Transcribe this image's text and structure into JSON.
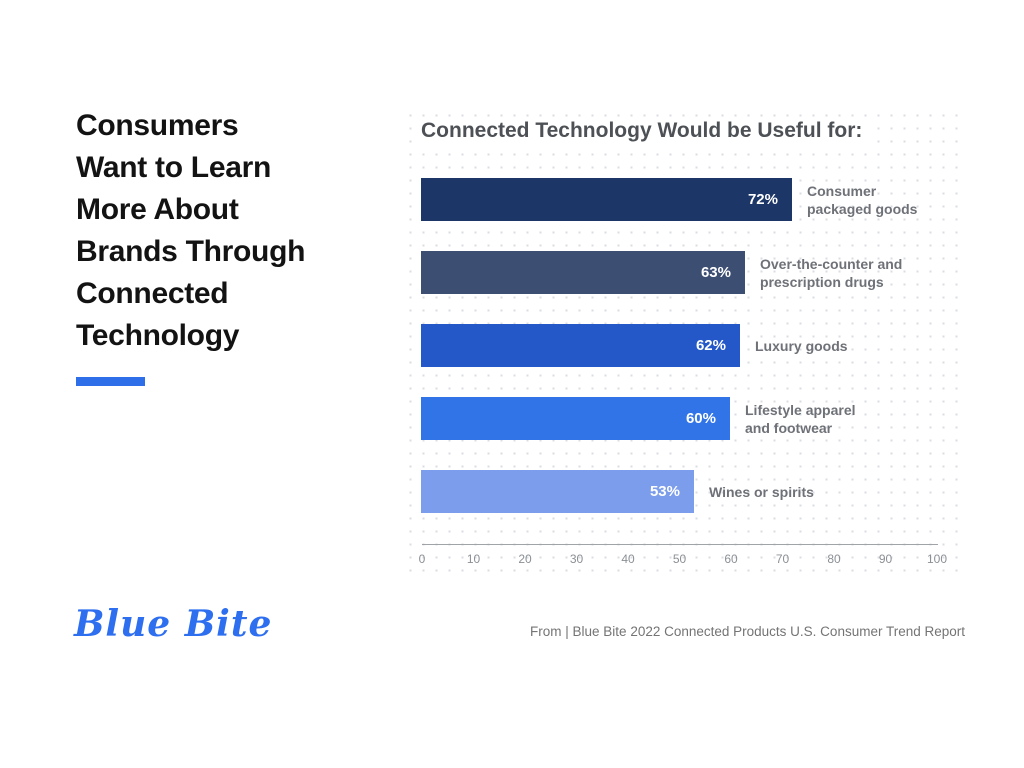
{
  "slide": {
    "headline": "Consumers Want to Learn More About Brands Through Connected Technology",
    "headline_lines": [
      "Consumers",
      "Want to Learn",
      "More About",
      "Brands Through",
      "Connected",
      "Technology"
    ],
    "accent_color": "#2e6ee9"
  },
  "chart_data": {
    "type": "bar",
    "orientation": "horizontal",
    "title": "Connected Technology Would be Useful for:",
    "categories": [
      "Consumer packaged goods",
      "Over-the-counter and prescription drugs",
      "Luxury goods",
      "Lifestyle apparel and footwear",
      "Wines or spirits"
    ],
    "values": [
      72,
      63,
      62,
      60,
      53
    ],
    "value_labels": [
      "72%",
      "63%",
      "62%",
      "60%",
      "53%"
    ],
    "label_lines": [
      [
        "Consumer",
        "packaged goods"
      ],
      [
        "Over-the-counter and",
        "prescription drugs"
      ],
      [
        "Luxury goods"
      ],
      [
        "Lifestyle apparel",
        "and footwear"
      ],
      [
        "Wines or spirits"
      ]
    ],
    "bar_colors": [
      "#1c3667",
      "#3d4e73",
      "#2458c9",
      "#3074e8",
      "#7c9deb"
    ],
    "xlim": [
      0,
      100
    ],
    "x_ticks": [
      0,
      10,
      20,
      30,
      40,
      50,
      60,
      70,
      80,
      90,
      100
    ],
    "grid": "dotted-background",
    "legend": "none",
    "xlabel": "",
    "ylabel": ""
  },
  "footer": {
    "logo_text": "Blue Bite",
    "source_text": "From | Blue Bite 2022 Connected Products U.S. Consumer Trend Report"
  }
}
